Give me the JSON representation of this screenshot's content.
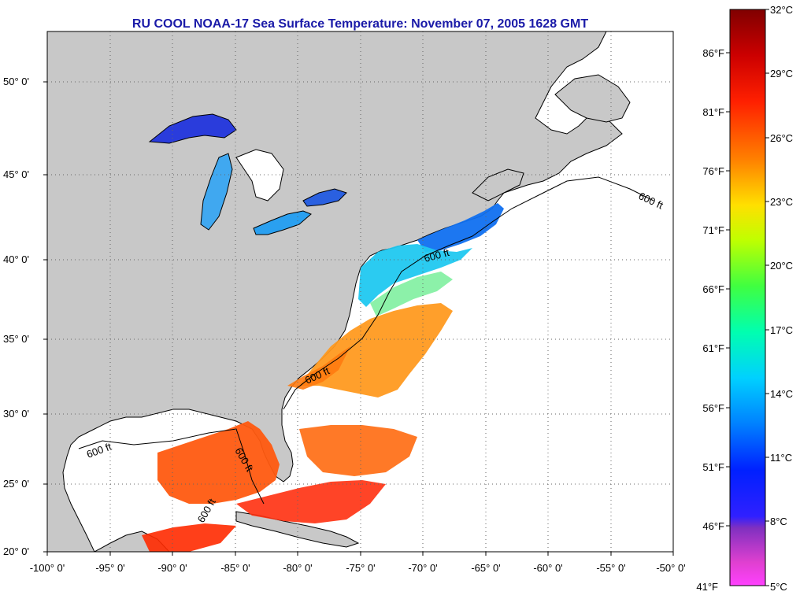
{
  "title": "RU COOL  NOAA-17  Sea Surface Temperature:  November 07, 2005 1628 GMT",
  "map": {
    "lon_range": [
      -100,
      -50
    ],
    "lat_range": [
      20,
      52.5
    ],
    "lon_ticks": [
      "-100° 0'",
      "-95° 0'",
      "-90° 0'",
      "-85° 0'",
      "-80° 0'",
      "-75° 0'",
      "-70° 0'",
      "-65° 0'",
      "-60° 0'",
      "-55° 0'",
      "-50° 0'"
    ],
    "lat_ticks": [
      "50° 0'",
      "45° 0'",
      "40° 0'",
      "35° 0'",
      "30° 0'",
      "25° 0'",
      "20° 0'"
    ],
    "land_color": "#c8c8c8",
    "water_no_data_color": "#ffffff",
    "contour_labels": [
      "600 ft",
      "600 ft",
      "600 ft",
      "600 ft",
      "600 ft",
      "600 ft"
    ]
  },
  "colorbar": {
    "celsius_labels": [
      "32°C",
      "29°C",
      "26°C",
      "23°C",
      "20°C",
      "17°C",
      "14°C",
      "11°C",
      "8°C",
      "5°C"
    ],
    "fahrenheit_labels": [
      "86°F",
      "81°F",
      "76°F",
      "71°F",
      "66°F",
      "61°F",
      "56°F",
      "51°F",
      "46°F",
      "41°F"
    ],
    "celsius_range": [
      5,
      32
    ],
    "fahrenheit_range": [
      41,
      89.6
    ]
  }
}
